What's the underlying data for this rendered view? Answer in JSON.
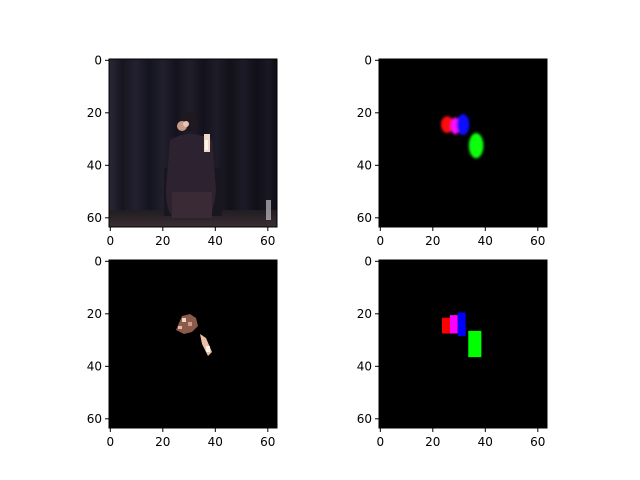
{
  "chart_data": [
    {
      "type": "image",
      "content": "RGB video frame: person seated on a dark stage in front of dark curtains",
      "xlim": [
        0,
        63
      ],
      "ylim": [
        63,
        0
      ],
      "xticks": [
        "0",
        "20",
        "40",
        "60"
      ],
      "yticks": [
        "0",
        "20",
        "40",
        "60"
      ]
    },
    {
      "type": "image",
      "content": "blurred colour heatmap on black",
      "xlim": [
        0,
        63
      ],
      "ylim": [
        63,
        0
      ],
      "xticks": [
        "0",
        "20",
        "40",
        "60"
      ],
      "yticks": [
        "0",
        "20",
        "40",
        "60"
      ],
      "blobs": [
        {
          "color": "#ff1010",
          "x": 25.5,
          "y": 24.5,
          "rx": 2.4,
          "ry": 3.2
        },
        {
          "color": "#ff10ff",
          "x": 28.5,
          "y": 25.0,
          "rx": 1.6,
          "ry": 3.2
        },
        {
          "color": "#1010ff",
          "x": 31.5,
          "y": 24.5,
          "rx": 2.4,
          "ry": 4.0
        },
        {
          "color": "#10ff10",
          "x": 36.5,
          "y": 32.5,
          "rx": 2.8,
          "ry": 4.8
        }
      ]
    },
    {
      "type": "image",
      "content": "masked skin regions (face and hand) on black",
      "xlim": [
        0,
        63
      ],
      "ylim": [
        63,
        0
      ],
      "xticks": [
        "0",
        "20",
        "40",
        "60"
      ],
      "yticks": [
        "0",
        "20",
        "40",
        "60"
      ]
    },
    {
      "type": "image",
      "content": "colour label boxes on black",
      "xlim": [
        0,
        63
      ],
      "ylim": [
        63,
        0
      ],
      "xticks": [
        "0",
        "20",
        "40",
        "60"
      ],
      "yticks": [
        "0",
        "20",
        "40",
        "60"
      ],
      "boxes": [
        {
          "color": "#ff0000",
          "x0": 24,
          "x1": 27,
          "y0": 22,
          "y1": 28
        },
        {
          "color": "#ff00ff",
          "x0": 27,
          "x1": 30,
          "y0": 21,
          "y1": 28
        },
        {
          "color": "#0000ff",
          "x0": 30,
          "x1": 33,
          "y0": 20,
          "y1": 29
        },
        {
          "color": "#00ff00",
          "x0": 34,
          "x1": 39,
          "y0": 27,
          "y1": 37
        }
      ]
    }
  ],
  "colors": {
    "background": "#000000",
    "frame": "#000000"
  }
}
